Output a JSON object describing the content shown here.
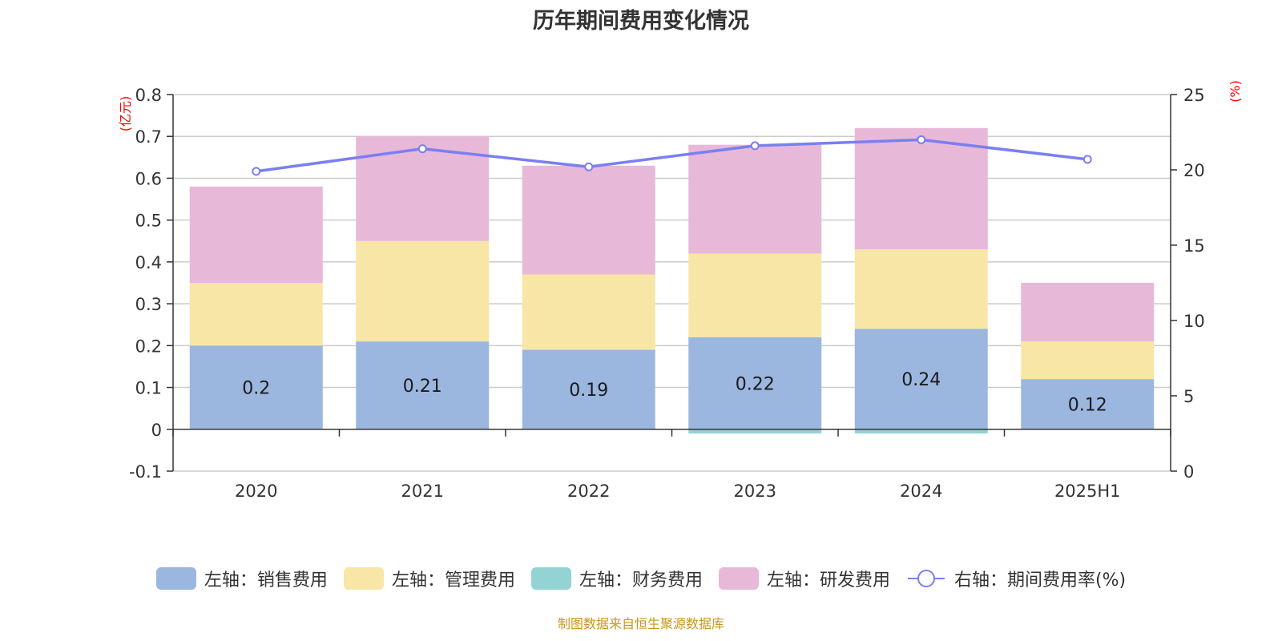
{
  "title": "历年期间费用变化情况",
  "source_note": "制图数据来自恒生聚源数据库",
  "chart_data": {
    "type": "bar",
    "stacked": true,
    "categories": [
      "2020",
      "2021",
      "2022",
      "2023",
      "2024",
      "2025H1"
    ],
    "left_axis": {
      "unit_label": "(亿元)",
      "range": [
        -0.1,
        0.8
      ],
      "ticks": [
        -0.1,
        0,
        0.1,
        0.2,
        0.3,
        0.4,
        0.5,
        0.6,
        0.7,
        0.8
      ],
      "tick_labels": [
        "-0.1",
        "0",
        "0.1",
        "0.2",
        "0.3",
        "0.4",
        "0.5",
        "0.6",
        "0.7",
        "0.8"
      ]
    },
    "right_axis": {
      "unit_label": "(%)",
      "range": [
        0,
        25
      ],
      "ticks": [
        0,
        5,
        10,
        15,
        20,
        25
      ],
      "tick_labels": [
        "0",
        "5",
        "10",
        "15",
        "20",
        "25"
      ]
    },
    "grid": true,
    "legend_position": "bottom",
    "series": [
      {
        "name": "左轴：销售费用",
        "type": "bar",
        "axis": "left",
        "color": "#9bb7e0",
        "values": [
          0.2,
          0.21,
          0.19,
          0.22,
          0.24,
          0.12
        ],
        "data_labels": [
          "0.2",
          "0.21",
          "0.19",
          "0.22",
          "0.24",
          "0.12"
        ]
      },
      {
        "name": "左轴：管理费用",
        "type": "bar",
        "axis": "left",
        "color": "#f8e6a6",
        "values": [
          0.15,
          0.24,
          0.18,
          0.2,
          0.19,
          0.09
        ]
      },
      {
        "name": "左轴：财务费用",
        "type": "bar",
        "axis": "left",
        "color": "#93d3d4",
        "values": [
          0,
          0,
          0,
          -0.01,
          -0.01,
          0
        ]
      },
      {
        "name": "左轴：研发费用",
        "type": "bar",
        "axis": "left",
        "color": "#e8b8d9",
        "values": [
          0.23,
          0.25,
          0.26,
          0.26,
          0.29,
          0.14
        ]
      },
      {
        "name": "右轴：期间费用率(%)",
        "type": "line",
        "axis": "right",
        "color": "#7b7ff0",
        "values": [
          19.9,
          21.4,
          20.2,
          21.6,
          22.0,
          20.7
        ]
      }
    ]
  }
}
